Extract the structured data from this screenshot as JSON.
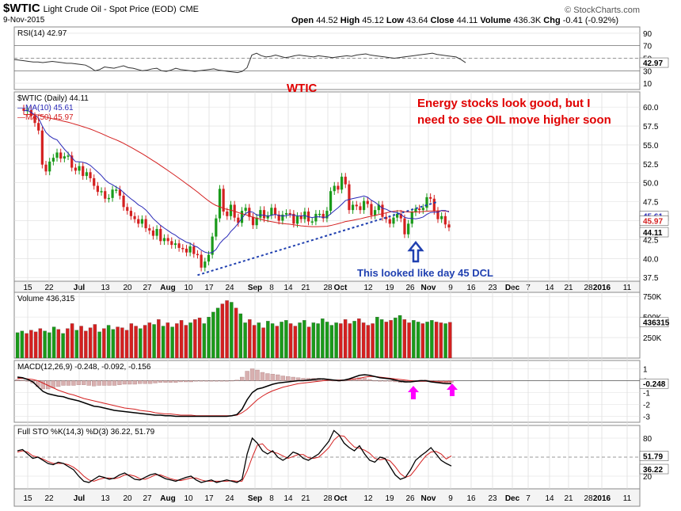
{
  "header": {
    "symbol": "$WTIC",
    "name": "Light Crude Oil - Spot Price (EOD)",
    "exchange": "CME",
    "date": "9-Nov-2015",
    "brand": "© StockCharts.com",
    "open_label": "Open",
    "open": "44.52",
    "high_label": "High",
    "high": "45.12",
    "low_label": "Low",
    "low": "43.64",
    "close_label": "Close",
    "close": "44.11",
    "volume_label": "Volume",
    "volume": "436.3K",
    "chg_label": "Chg",
    "chg": "-0.41 (-0.92%)"
  },
  "annotations": {
    "wtic": "WTIC",
    "comment_line1": "Energy stocks look good, but I",
    "comment_line2": "need to see OIL move higher soon",
    "dcl": "This looked like day 45 DCL"
  },
  "colors": {
    "up": "#1a9a1a",
    "down": "#d42020",
    "ma10": "#2a2ab8",
    "ma50": "#d42020",
    "annotation_red": "#e00000",
    "annotation_blue": "#2040b0",
    "magenta": "#ff00ff",
    "grid": "#dddddd"
  },
  "chart_data": [
    {
      "type": "line",
      "name": "rsi",
      "legend": "RSI(14) 42.97",
      "last_value": "42.97",
      "ylim": [
        0,
        100
      ],
      "ticks": [
        "90",
        "70",
        "50",
        "30",
        "10"
      ],
      "x": [
        0,
        6,
        12,
        18,
        24,
        30,
        36,
        42,
        48,
        54,
        60,
        66,
        72,
        78,
        84,
        90,
        96,
        102,
        108,
        114,
        120,
        126,
        132,
        138,
        144,
        150,
        156,
        162,
        168,
        174,
        180,
        186,
        192,
        198,
        204,
        210,
        216,
        222,
        228,
        234,
        240,
        246,
        252,
        258,
        264,
        270,
        276,
        282,
        288,
        294,
        300,
        306,
        312,
        318,
        324,
        330,
        336,
        342,
        348,
        354,
        360,
        366,
        372,
        378,
        384,
        390,
        396,
        402,
        408,
        414,
        420,
        426,
        432,
        438,
        444,
        450,
        456,
        462,
        468,
        474,
        480,
        486,
        492,
        498,
        504,
        510,
        516,
        522,
        528,
        534,
        540,
        546,
        552,
        558,
        564,
        570
      ],
      "values": [
        48,
        47,
        46,
        45,
        44,
        44,
        43,
        44,
        45,
        44,
        43,
        42,
        42,
        41,
        40,
        39,
        35,
        30,
        32,
        36,
        35,
        34,
        36,
        38,
        35,
        34,
        32,
        30,
        31,
        33,
        34,
        30,
        29,
        31,
        34,
        32,
        31,
        30,
        29,
        30,
        31,
        32,
        33,
        31,
        30,
        29,
        28,
        27,
        29,
        35,
        55,
        58,
        54,
        52,
        53,
        55,
        53,
        51,
        52,
        54,
        55,
        54,
        53,
        52,
        54,
        53,
        52,
        51,
        52,
        53,
        54,
        53,
        55,
        56,
        57,
        55,
        54,
        53,
        52,
        51,
        50,
        51,
        52,
        53,
        54,
        55,
        56,
        57,
        58,
        56,
        55,
        54,
        53,
        52,
        48,
        43
      ]
    },
    {
      "type": "candlestick",
      "name": "price",
      "legend": "$WTIC (Daily) 44.11",
      "ma10_legend": "MA(10) 45.61",
      "ma50_legend": "MA(50) 45.97",
      "ma10_last": "45.61",
      "ma50_last": "45.97",
      "close_last": "44.11",
      "ylim": [
        37,
        62
      ],
      "ticks": [
        "60.0",
        "57.5",
        "55.0",
        "52.5",
        "50.0",
        "47.5",
        "45.0",
        "42.5",
        "40.0",
        "37.5"
      ],
      "closes": [
        59.5,
        59.6,
        58.8,
        57.9,
        56.9,
        52.4,
        51.5,
        52.8,
        53.3,
        54.0,
        53.2,
        53.5,
        53.6,
        52.0,
        51.6,
        52.2,
        50.9,
        51.4,
        50.6,
        49.6,
        48.8,
        48.9,
        47.9,
        48.0,
        49.1,
        49.1,
        48.3,
        46.8,
        46.3,
        45.6,
        45.2,
        44.6,
        45.2,
        44.0,
        43.7,
        43.0,
        43.9,
        42.3,
        42.7,
        42.3,
        41.8,
        42.0,
        41.4,
        41.3,
        40.8,
        41.6,
        40.6,
        40.5,
        38.8,
        39.6,
        40.5,
        42.9,
        45.3,
        49.2,
        46.2,
        45.6,
        47.1,
        45.4,
        44.7,
        46.3,
        46.7,
        45.5,
        44.4,
        45.4,
        46.4,
        45.3,
        45.7,
        46.7,
        45.8,
        45.0,
        45.8,
        46.0,
        45.9,
        44.6,
        45.6,
        45.2,
        46.2,
        44.9,
        44.9,
        45.9,
        45.9,
        45.3,
        46.3,
        48.9,
        49.6,
        49.1,
        50.8,
        49.8,
        46.4,
        47.1,
        46.9,
        46.4,
        47.6,
        47.2,
        45.7,
        46.4,
        47.1,
        45.5,
        45.2,
        44.6,
        45.4,
        45.9,
        45.3,
        43.2,
        44.6,
        46.1,
        46.6,
        46.4,
        46.7,
        48.1,
        47.9,
        46.3,
        45.2,
        45.6,
        44.5,
        44.1
      ],
      "dates": [
        "Jun 15",
        "Jun 22",
        "Jul",
        "13",
        "20",
        "27",
        "Aug",
        "10",
        "17",
        "24",
        "Sep",
        "8",
        "14",
        "21",
        "28",
        "Oct",
        "12",
        "19",
        "26",
        "Nov",
        "9",
        "16",
        "23",
        "Dec",
        "7",
        "14",
        "21",
        "28",
        "2016",
        "11"
      ],
      "trendline": {
        "from": [
          47,
          37.8
        ],
        "to": [
          112,
          47.5
        ]
      }
    },
    {
      "type": "bar",
      "name": "volume",
      "legend": "Volume 436,315",
      "last_value": "436315",
      "ylim": [
        0,
        800000
      ],
      "ticks": [
        "750K",
        "500K",
        "250K"
      ],
      "values": [
        310000,
        330000,
        300000,
        340000,
        320000,
        360000,
        330000,
        310000,
        380000,
        350000,
        300000,
        360000,
        420000,
        340000,
        390000,
        330000,
        370000,
        410000,
        320000,
        360000,
        400000,
        350000,
        380000,
        370000,
        340000,
        420000,
        390000,
        360000,
        400000,
        430000,
        410000,
        470000,
        390000,
        430000,
        380000,
        420000,
        460000,
        400000,
        430000,
        470000,
        490000,
        420000,
        500000,
        560000,
        610000,
        660000,
        700000,
        680000,
        610000,
        540000,
        430000,
        470000,
        400000,
        430000,
        370000,
        450000,
        420000,
        390000,
        440000,
        460000,
        420000,
        390000,
        430000,
        460000,
        380000,
        430000,
        420000,
        480000,
        440000,
        400000,
        430000,
        420000,
        470000,
        420000,
        450000,
        480000,
        430000,
        400000,
        420000,
        500000,
        470000,
        440000,
        460000,
        490000,
        520000,
        470000,
        430000,
        460000,
        440000,
        420000,
        440000,
        460000,
        440000,
        430000,
        420000,
        436315
      ]
    },
    {
      "type": "line",
      "name": "macd",
      "legend": "MACD(12,26,9) -0.248, -0.092, -0.156",
      "last_value": "-0.248",
      "ylim": [
        -3.5,
        1.7
      ],
      "ticks": [
        "1",
        "0",
        "-1",
        "-2",
        "-3"
      ],
      "macd": [
        0.3,
        0.25,
        0.1,
        -0.1,
        -0.5,
        -0.9,
        -1.1,
        -1.2,
        -1.3,
        -1.35,
        -1.5,
        -1.6,
        -1.7,
        -1.85,
        -2.0,
        -2.15,
        -2.2,
        -2.3,
        -2.4,
        -2.5,
        -2.55,
        -2.6,
        -2.65,
        -2.7,
        -2.75,
        -2.8,
        -2.85,
        -2.9,
        -2.9,
        -2.95,
        -2.95,
        -3.0,
        -3.0,
        -3.0,
        -3.0,
        -3.0,
        -3.0,
        -3.0,
        -3.0,
        -3.0,
        -3.0,
        -3.0,
        -2.95,
        -2.85,
        -2.4,
        -1.6,
        -1.0,
        -0.7,
        -0.6,
        -0.45,
        -0.3,
        -0.2,
        -0.15,
        -0.1,
        -0.05,
        0.0,
        0.0,
        0.05,
        0.1,
        0.15,
        0.15,
        0.1,
        0.05,
        0.0,
        0.05,
        0.15,
        0.3,
        0.45,
        0.5,
        0.45,
        0.35,
        0.25,
        0.2,
        0.15,
        0.05,
        -0.05,
        -0.1,
        -0.1,
        -0.05,
        0.0,
        0.0,
        -0.1,
        -0.15,
        -0.2,
        -0.25,
        -0.248
      ],
      "signal": [
        0.2,
        0.2,
        0.15,
        0.1,
        0.0,
        -0.2,
        -0.4,
        -0.6,
        -0.8,
        -0.95,
        -1.1,
        -1.2,
        -1.35,
        -1.5,
        -1.6,
        -1.7,
        -1.8,
        -1.9,
        -2.0,
        -2.1,
        -2.2,
        -2.3,
        -2.35,
        -2.4,
        -2.5,
        -2.55,
        -2.6,
        -2.7,
        -2.75,
        -2.8,
        -2.8,
        -2.85,
        -2.9,
        -2.9,
        -2.9,
        -2.95,
        -2.95,
        -2.95,
        -2.95,
        -2.95,
        -2.95,
        -2.95,
        -2.95,
        -2.9,
        -2.7,
        -2.4,
        -2.0,
        -1.6,
        -1.3,
        -1.05,
        -0.85,
        -0.7,
        -0.55,
        -0.45,
        -0.35,
        -0.25,
        -0.2,
        -0.15,
        -0.1,
        -0.05,
        0.0,
        0.05,
        0.05,
        0.05,
        0.05,
        0.1,
        0.15,
        0.2,
        0.3,
        0.35,
        0.35,
        0.3,
        0.25,
        0.2,
        0.15,
        0.1,
        0.05,
        0.0,
        -0.05,
        -0.05,
        -0.05,
        -0.05,
        -0.08,
        -0.1,
        -0.1,
        -0.092
      ],
      "hist": [
        0.1,
        0.05,
        -0.05,
        -0.2,
        -0.5,
        -0.7,
        -0.7,
        -0.6,
        -0.5,
        -0.4,
        -0.4,
        -0.4,
        -0.35,
        -0.35,
        -0.4,
        -0.45,
        -0.4,
        -0.4,
        -0.4,
        -0.4,
        -0.35,
        -0.3,
        -0.3,
        -0.3,
        -0.25,
        -0.25,
        -0.25,
        -0.2,
        -0.15,
        -0.15,
        -0.15,
        -0.15,
        -0.1,
        -0.1,
        -0.1,
        -0.05,
        -0.05,
        -0.05,
        -0.05,
        -0.05,
        -0.05,
        -0.05,
        0.0,
        0.05,
        0.3,
        0.8,
        1.0,
        0.9,
        0.7,
        0.6,
        0.55,
        0.5,
        0.4,
        0.35,
        0.3,
        0.25,
        0.2,
        0.2,
        0.2,
        0.2,
        0.15,
        0.05,
        0.0,
        -0.05,
        0.0,
        0.05,
        0.15,
        0.25,
        0.2,
        0.1,
        0.0,
        -0.05,
        -0.05,
        -0.05,
        -0.1,
        -0.15,
        -0.15,
        -0.1,
        0.0,
        0.05,
        0.05,
        -0.05,
        -0.07,
        -0.1,
        -0.15,
        -0.156
      ]
    },
    {
      "type": "line",
      "name": "stochastic",
      "legend": "Full STO %K(14,3) %D(3) 36.22, 51.79",
      "k_last": "36.22",
      "d_last": "51.79",
      "ylim": [
        0,
        100
      ],
      "ticks": [
        "80",
        "20"
      ],
      "k": [
        60,
        62,
        55,
        48,
        50,
        45,
        40,
        38,
        42,
        40,
        35,
        30,
        20,
        12,
        10,
        15,
        20,
        18,
        15,
        17,
        22,
        25,
        20,
        15,
        14,
        18,
        22,
        24,
        20,
        16,
        14,
        12,
        15,
        18,
        20,
        14,
        10,
        12,
        14,
        10,
        12,
        14,
        12,
        10,
        15,
        55,
        80,
        72,
        60,
        55,
        60,
        50,
        45,
        50,
        58,
        55,
        48,
        45,
        50,
        55,
        65,
        75,
        92,
        85,
        72,
        65,
        60,
        68,
        55,
        45,
        42,
        50,
        48,
        35,
        22,
        15,
        18,
        30,
        45,
        52,
        58,
        65,
        55,
        45,
        40,
        36
      ],
      "d": [
        58,
        60,
        58,
        52,
        50,
        47,
        43,
        40,
        40,
        40,
        38,
        34,
        28,
        20,
        14,
        12,
        15,
        17,
        17,
        16,
        18,
        22,
        22,
        20,
        16,
        15,
        18,
        22,
        22,
        19,
        16,
        14,
        13,
        15,
        17,
        17,
        14,
        12,
        12,
        12,
        12,
        12,
        13,
        12,
        12,
        28,
        50,
        69,
        71,
        62,
        58,
        56,
        52,
        48,
        51,
        54,
        54,
        49,
        48,
        50,
        57,
        65,
        77,
        84,
        83,
        74,
        66,
        64,
        61,
        56,
        48,
        46,
        47,
        44,
        35,
        24,
        18,
        21,
        31,
        42,
        52,
        58,
        59,
        55,
        47,
        52
      ]
    }
  ]
}
